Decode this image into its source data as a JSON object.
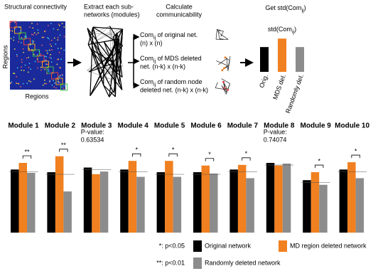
{
  "diagram": {
    "panel1": {
      "title": "Structural connectivity",
      "ylabel": "Regions",
      "xlabel": "Regions"
    },
    "panel2": {
      "lines": [
        "Extract each sub-",
        "networks (modules)"
      ]
    },
    "panel3": {
      "lines": [
        "Calculate",
        "communicability"
      ],
      "items": [
        {
          "com": "Com",
          "sub": "ij",
          "rest": " of original net.",
          "line2": "(n) x (n)"
        },
        {
          "com": "Com",
          "sub": "ij",
          "rest": " of MDS deleted",
          "line2": "net. (n-k) x (n-k)"
        },
        {
          "com": "Com",
          "sub": "ij",
          "rest": " of random node",
          "line2": "deleted net. (n-k) x (n-k)"
        }
      ]
    },
    "panel4": {
      "title": {
        "pre": "Get std(Com",
        "sub": "ij",
        "post": ")"
      },
      "label": {
        "pre": "std(Com",
        "sub": "ij",
        "post": ")"
      }
    },
    "significance": [
      "*: p<0.05",
      "**: p<0.01"
    ]
  },
  "chart_data": [
    {
      "type": "bar",
      "categories": [
        "Orig.",
        "MDS del.",
        "Randomly del."
      ],
      "values": [
        38,
        51,
        38
      ],
      "colors": [
        "#000000",
        "#f08020",
        "#8c8c8c"
      ],
      "ylim": [
        0,
        60
      ]
    },
    {
      "type": "grouped-bar",
      "title": "Module 1",
      "ylim": [
        0,
        120
      ],
      "annotation": [
        "**"
      ],
      "series": [
        {
          "name": "Original network",
          "color": "#000000",
          "values": [
            95
          ]
        },
        {
          "name": "MD region deleted network",
          "color": "#f08020",
          "values": [
            105
          ]
        },
        {
          "name": "Randomly deleted network",
          "color": "#8c8c8c",
          "values": [
            90
          ]
        }
      ]
    },
    {
      "type": "grouped-bar",
      "title": "Module 2",
      "ylim": [
        0,
        120
      ],
      "annotation": [
        "**"
      ],
      "series": [
        {
          "name": "Original network",
          "color": "#000000",
          "values": [
            91
          ]
        },
        {
          "name": "MD region deleted network",
          "color": "#f08020",
          "values": [
            115
          ]
        },
        {
          "name": "Randomly deleted network",
          "color": "#8c8c8c",
          "values": [
            62
          ]
        }
      ]
    },
    {
      "type": "grouped-bar",
      "title": "Module 3",
      "ylim": [
        0,
        120
      ],
      "annotation": [
        "P-value:",
        "0.63534"
      ],
      "series": [
        {
          "name": "Original network",
          "color": "#000000",
          "values": [
            98
          ]
        },
        {
          "name": "MD region deleted network",
          "color": "#f08020",
          "values": [
            88
          ]
        },
        {
          "name": "Randomly deleted network",
          "color": "#8c8c8c",
          "values": [
            92
          ]
        }
      ]
    },
    {
      "type": "grouped-bar",
      "title": "Module 4",
      "ylim": [
        0,
        120
      ],
      "annotation": [
        "*"
      ],
      "series": [
        {
          "name": "Original network",
          "color": "#000000",
          "values": [
            95
          ]
        },
        {
          "name": "MD region deleted network",
          "color": "#f08020",
          "values": [
            108
          ]
        },
        {
          "name": "Randomly deleted network",
          "color": "#8c8c8c",
          "values": [
            84
          ]
        }
      ]
    },
    {
      "type": "grouped-bar",
      "title": "Module 5",
      "ylim": [
        0,
        120
      ],
      "annotation": [
        "*"
      ],
      "series": [
        {
          "name": "Original network",
          "color": "#000000",
          "values": [
            91
          ]
        },
        {
          "name": "MD region deleted network",
          "color": "#f08020",
          "values": [
            108
          ]
        },
        {
          "name": "Randomly deleted network",
          "color": "#8c8c8c",
          "values": [
            84
          ]
        }
      ]
    },
    {
      "type": "grouped-bar",
      "title": "Module 6",
      "ylim": [
        0,
        120
      ],
      "annotation": [
        "*"
      ],
      "series": [
        {
          "name": "Original network",
          "color": "#000000",
          "values": [
            91
          ]
        },
        {
          "name": "MD region deleted network",
          "color": "#f08020",
          "values": [
            101
          ]
        },
        {
          "name": "Randomly deleted network",
          "color": "#8c8c8c",
          "values": [
            89
          ]
        }
      ]
    },
    {
      "type": "grouped-bar",
      "title": "Module 7",
      "ylim": [
        0,
        120
      ],
      "annotation": [
        "*"
      ],
      "series": [
        {
          "name": "Original network",
          "color": "#000000",
          "values": [
            95
          ]
        },
        {
          "name": "MD region deleted network",
          "color": "#f08020",
          "values": [
            102
          ]
        },
        {
          "name": "Randomly deleted network",
          "color": "#8c8c8c",
          "values": [
            82
          ]
        }
      ]
    },
    {
      "type": "grouped-bar",
      "title": "Module 8",
      "ylim": [
        0,
        120
      ],
      "annotation": [
        "P-value:",
        "0.74074"
      ],
      "series": [
        {
          "name": "Original network",
          "color": "#000000",
          "values": [
            105
          ]
        },
        {
          "name": "MD region deleted network",
          "color": "#f08020",
          "values": [
            101
          ]
        },
        {
          "name": "Randomly deleted network",
          "color": "#8c8c8c",
          "values": [
            104
          ]
        }
      ]
    },
    {
      "type": "grouped-bar",
      "title": "Module 9",
      "ylim": [
        0,
        120
      ],
      "annotation": [
        "*"
      ],
      "series": [
        {
          "name": "Original network",
          "color": "#000000",
          "values": [
            79
          ]
        },
        {
          "name": "MD region deleted network",
          "color": "#f08020",
          "values": [
            91
          ]
        },
        {
          "name": "Randomly deleted network",
          "color": "#8c8c8c",
          "values": [
            72
          ]
        }
      ]
    },
    {
      "type": "grouped-bar",
      "title": "Module 10",
      "ylim": [
        0,
        120
      ],
      "annotation": [
        "*"
      ],
      "series": [
        {
          "name": "Original network",
          "color": "#000000",
          "values": [
            95
          ]
        },
        {
          "name": "MD region deleted network",
          "color": "#f08020",
          "values": [
            106
          ]
        },
        {
          "name": "Randomly deleted network",
          "color": "#8c8c8c",
          "values": [
            82
          ]
        }
      ]
    }
  ]
}
